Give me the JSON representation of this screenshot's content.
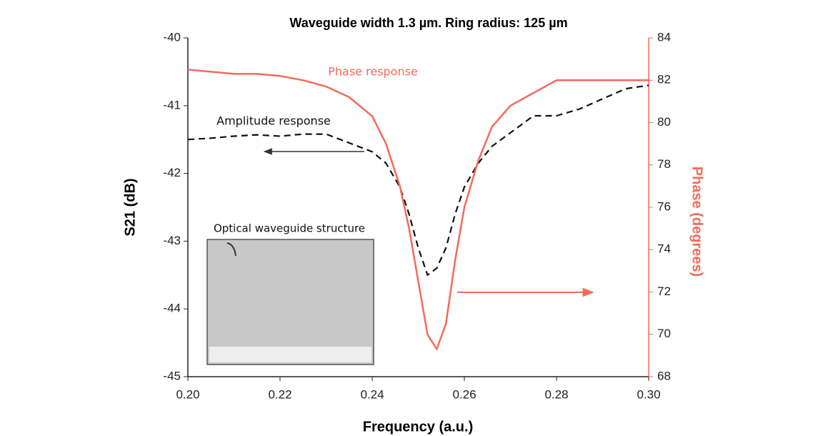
{
  "chart_data": {
    "type": "line",
    "title": "Waveguide width 1.3 µm. Ring radius: 125 µm",
    "xlabel": "Frequency (a.u.)",
    "ylabel": "S21 (dB)",
    "y2label": "Phase (degrees)",
    "annotations": [
      "Phase response",
      "Amplitude response",
      "Optical waveguide structure"
    ],
    "x": [
      0.2,
      0.205,
      0.21,
      0.215,
      0.22,
      0.225,
      0.23,
      0.235,
      0.24,
      0.243,
      0.246,
      0.248,
      0.25,
      0.252,
      0.254,
      0.256,
      0.258,
      0.26,
      0.263,
      0.266,
      0.27,
      0.275,
      0.28,
      0.285,
      0.29,
      0.295,
      0.3
    ],
    "series": [
      {
        "name": "Amplitude response",
        "color": "#111111",
        "dashed": true,
        "axis": "y",
        "values": [
          -41.5,
          -41.48,
          -41.45,
          -41.43,
          -41.45,
          -41.42,
          -41.42,
          -41.55,
          -41.68,
          -41.85,
          -42.2,
          -42.6,
          -43.1,
          -43.5,
          -43.4,
          -43.1,
          -42.6,
          -42.2,
          -41.85,
          -41.6,
          -41.4,
          -41.15,
          -41.15,
          -41.05,
          -40.9,
          -40.75,
          -40.7
        ]
      },
      {
        "name": "Phase response",
        "color": "#f26b5b",
        "dashed": false,
        "axis": "y2",
        "values": [
          82.5,
          82.4,
          82.3,
          82.3,
          82.2,
          82.0,
          81.7,
          81.2,
          80.3,
          79.0,
          77.0,
          75.0,
          72.5,
          70.0,
          69.3,
          70.5,
          73.5,
          76.0,
          78.2,
          79.8,
          80.8,
          81.4,
          82.0,
          82.0,
          82.0,
          82.0,
          82.0
        ]
      }
    ],
    "xlim": [
      0.2,
      0.3
    ],
    "xticks": [
      {
        "value": 0.2,
        "label": "0.20"
      },
      {
        "value": 0.22,
        "label": "0.22"
      },
      {
        "value": 0.24,
        "label": "0.24"
      },
      {
        "value": 0.26,
        "label": "0.26"
      },
      {
        "value": 0.28,
        "label": "0.28"
      },
      {
        "value": 0.3,
        "label": "0.30"
      }
    ],
    "ylim": [
      -45,
      -40
    ],
    "yticks": [
      -45,
      -44,
      -43,
      -42,
      -41,
      -40
    ],
    "y2lim": [
      68,
      84
    ],
    "y2ticks": [
      68,
      70,
      72,
      74,
      76,
      78,
      80,
      82,
      84
    ],
    "y2color": "#f26b5b",
    "grid": false
  }
}
